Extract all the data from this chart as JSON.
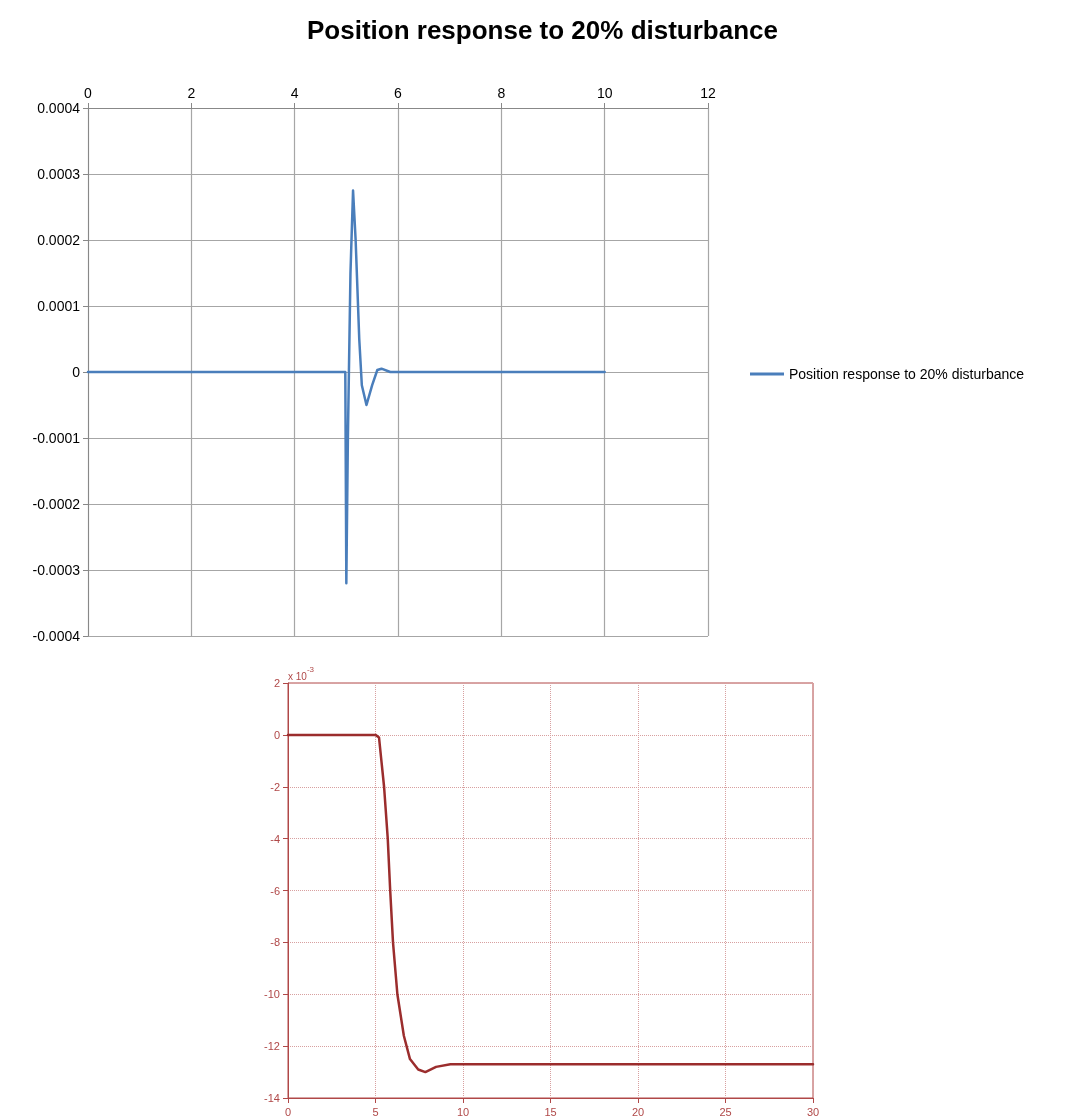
{
  "chart_data": [
    {
      "type": "line",
      "title": "Position response to 20% disturbance",
      "legend": "right",
      "grid": true,
      "xlim": [
        0,
        12
      ],
      "xticks": [
        0,
        2,
        4,
        6,
        8,
        10,
        12
      ],
      "ylim": [
        -0.0004,
        0.0004
      ],
      "yticks": [
        -0.0004,
        -0.0003,
        -0.0002,
        -0.0001,
        0,
        0.0001,
        0.0002,
        0.0003,
        0.0004
      ],
      "series": [
        {
          "name": "Position response to 20% disturbance",
          "color": "#4a7ebb",
          "x": [
            0,
            4.98,
            5.0,
            5.03,
            5.05,
            5.08,
            5.13,
            5.18,
            5.25,
            5.3,
            5.39,
            5.5,
            5.6,
            5.68,
            5.85,
            10
          ],
          "values": [
            0,
            0,
            -0.00032,
            -0.0001,
            0,
            0.00015,
            0.000275,
            0.0002,
            5e-05,
            -2e-05,
            -5e-05,
            -2e-05,
            3e-06,
            5e-06,
            0,
            0
          ]
        }
      ]
    },
    {
      "type": "line",
      "grid": true,
      "annotations": [
        "x 10$^{-3}$"
      ],
      "xlim": [
        0,
        30
      ],
      "xticks": [
        0,
        5,
        10,
        15,
        20,
        25,
        30
      ],
      "ylim": [
        -14,
        2
      ],
      "yticks": [
        -14,
        -12,
        -10,
        -8,
        -6,
        -4,
        -2,
        0,
        2
      ],
      "series": [
        {
          "color": "#9b2d2d",
          "x": [
            0,
            5.0,
            5.2,
            5.49,
            5.7,
            5.84,
            6.0,
            6.25,
            6.62,
            6.97,
            7.44,
            7.85,
            8.46,
            9.28,
            10,
            30
          ],
          "values": [
            0,
            0,
            -0.1,
            -2,
            -4,
            -6,
            -8,
            -10,
            -11.6,
            -12.5,
            -12.9,
            -13.0,
            -12.8,
            -12.7,
            -12.7,
            -12.7
          ]
        }
      ]
    }
  ]
}
